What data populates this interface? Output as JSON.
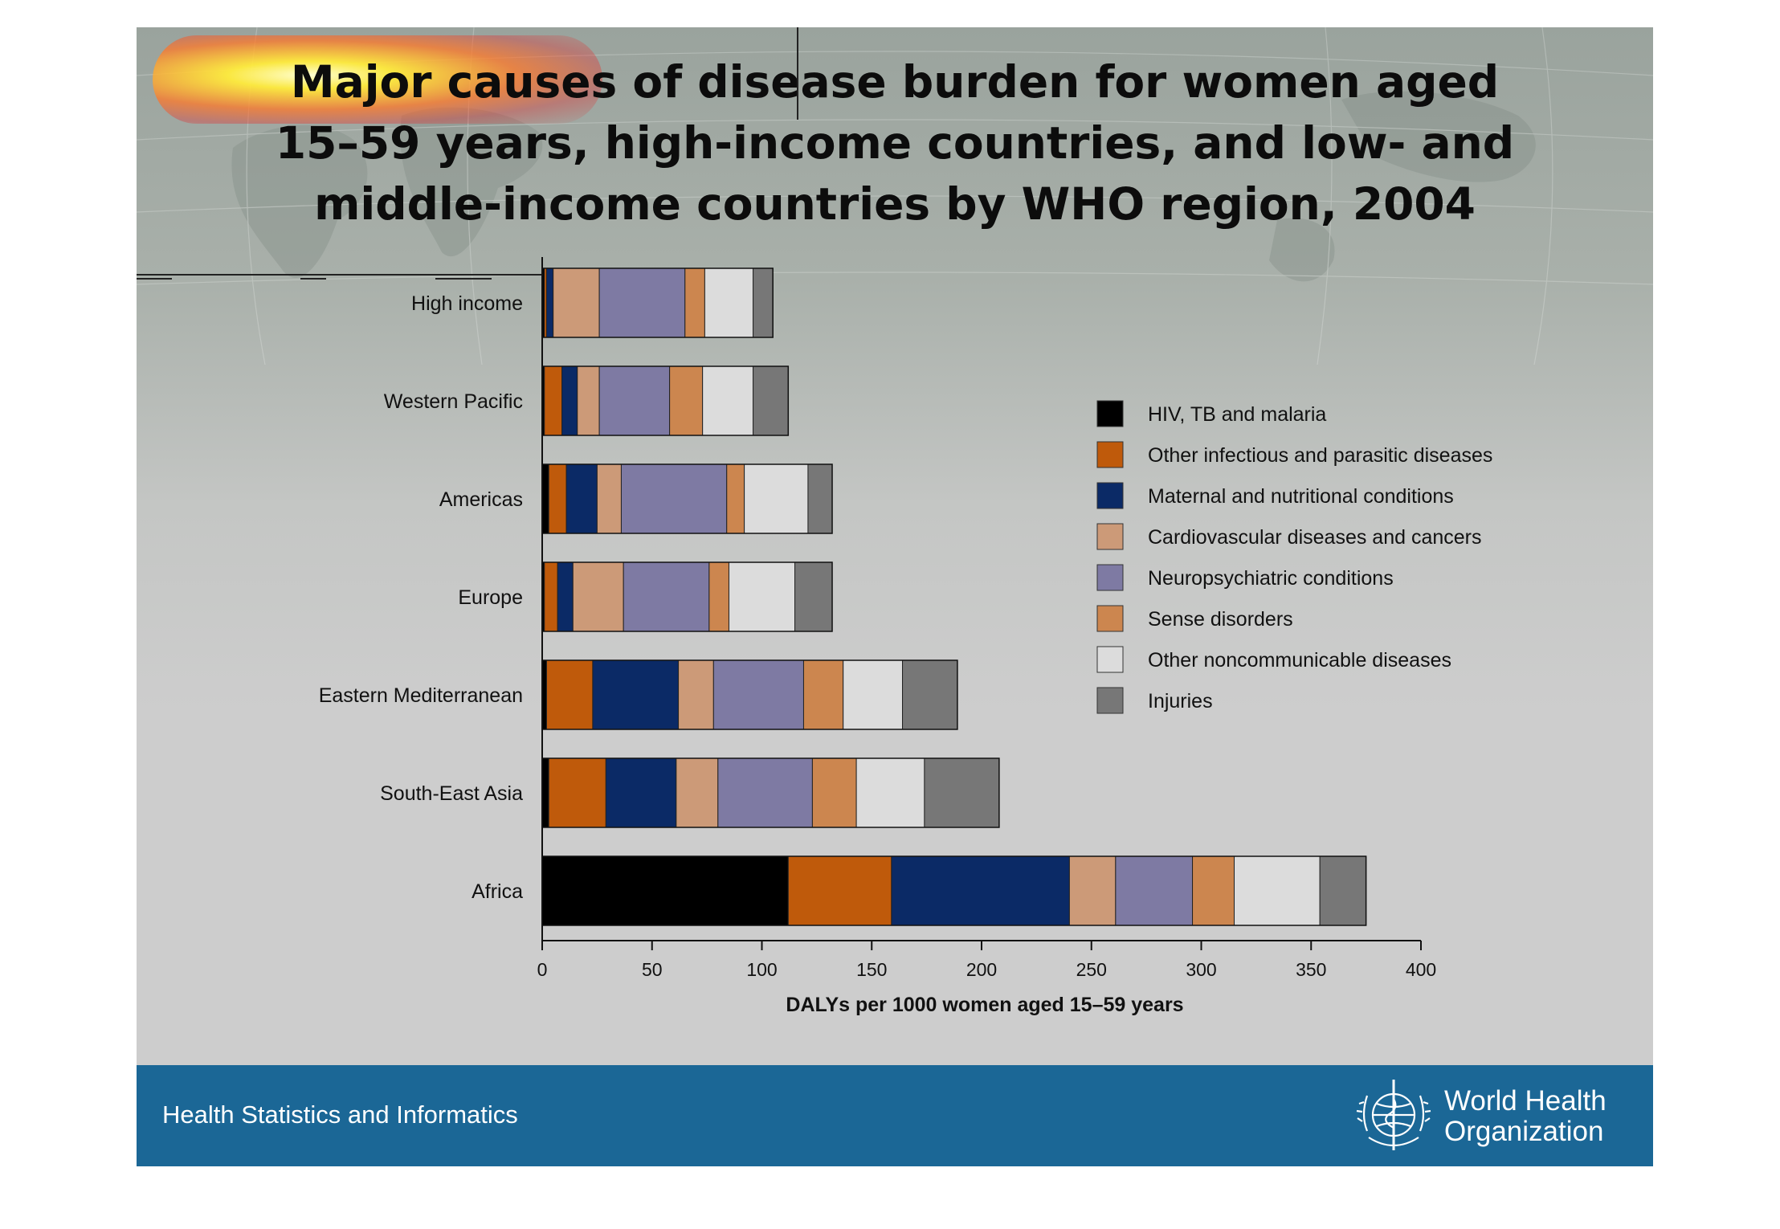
{
  "slide": {
    "title_highlight": "Major causes",
    "title_rest": "of disease burden for women aged",
    "title_line2": "15–59 years, high-income countries, and low- and",
    "title_line3": "middle-income countries by WHO region, 2004"
  },
  "footer": {
    "text": "Health Statistics and Informatics",
    "org_line1": "World Health",
    "org_line2": "Organization"
  },
  "colors": {
    "HIV, TB and malaria": "#000000",
    "Other infectious and parasitic diseases": "#bf5a0b",
    "Maternal and nutritional conditions": "#0b2a66",
    "Cardiovascular diseases and cancers": "#cc9a78",
    "Neuropsychiatric conditions": "#7e7aa3",
    "Sense disorders": "#cc864f",
    "Other noncommunicable diseases": "#dcdcdc",
    "Injuries": "#777777"
  },
  "chart_data": {
    "type": "bar",
    "orientation": "horizontal",
    "stacked": true,
    "title": "Major causes of disease burden for women aged 15–59 years, high-income countries, and low- and middle-income countries by WHO region, 2004",
    "xlabel": "DALYs per 1000 women aged 15–59 years",
    "ylabel": "",
    "xlim": [
      0,
      400
    ],
    "xticks": [
      0,
      50,
      100,
      150,
      200,
      250,
      300,
      350,
      400
    ],
    "grid": false,
    "legend_position": "right",
    "categories": [
      "High income",
      "Western Pacific",
      "Americas",
      "Europe",
      "Eastern Mediterranean",
      "South-East Asia",
      "Africa"
    ],
    "series": [
      {
        "name": "HIV, TB and malaria",
        "values": [
          1,
          1,
          3,
          1,
          2,
          3,
          112
        ]
      },
      {
        "name": "Other infectious and parasitic diseases",
        "values": [
          1,
          8,
          8,
          6,
          21,
          26,
          47
        ]
      },
      {
        "name": "Maternal and nutritional conditions",
        "values": [
          3,
          7,
          14,
          7,
          39,
          32,
          81
        ]
      },
      {
        "name": "Cardiovascular diseases and cancers",
        "values": [
          21,
          10,
          11,
          23,
          16,
          19,
          21
        ]
      },
      {
        "name": "Neuropsychiatric conditions",
        "values": [
          39,
          32,
          48,
          39,
          41,
          43,
          35
        ]
      },
      {
        "name": "Sense disorders",
        "values": [
          9,
          15,
          8,
          9,
          18,
          20,
          19
        ]
      },
      {
        "name": "Other noncommunicable diseases",
        "values": [
          22,
          23,
          29,
          30,
          27,
          31,
          39
        ]
      },
      {
        "name": "Injuries",
        "values": [
          9,
          16,
          11,
          17,
          25,
          34,
          21
        ]
      }
    ]
  }
}
